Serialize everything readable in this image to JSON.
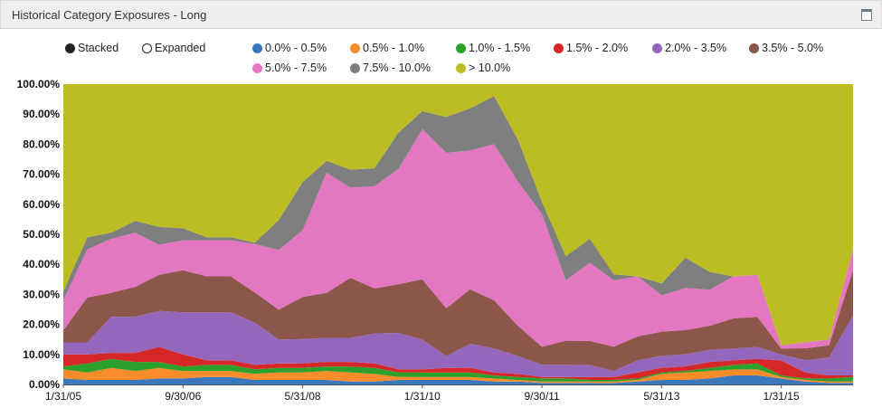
{
  "panel": {
    "title": "Historical Category Exposures - Long",
    "maximize_icon": "window-maximize-icon"
  },
  "mode_toggle": [
    {
      "label": "Stacked",
      "selected": true
    },
    {
      "label": "Expanded",
      "selected": false
    }
  ],
  "chart_data": {
    "type": "area",
    "stacking": "percent",
    "title": "",
    "xlabel": "",
    "ylabel": "",
    "ylim": [
      0,
      100
    ],
    "x_ticks": [
      "1/31/05",
      "9/30/06",
      "5/31/08",
      "1/31/10",
      "9/30/11",
      "5/31/13",
      "1/31/15"
    ],
    "y_ticks": [
      "0.00%",
      "10.00%",
      "20.00%",
      "30.00%",
      "40.00%",
      "50.00%",
      "60.00%",
      "70.00%",
      "80.00%",
      "90.00%",
      "100.00%"
    ],
    "x": [
      "1/31/05",
      "5/31/05",
      "9/30/05",
      "1/31/06",
      "5/31/06",
      "9/30/06",
      "1/31/07",
      "5/31/07",
      "9/30/07",
      "1/31/08",
      "5/31/08",
      "9/30/08",
      "1/31/09",
      "5/31/09",
      "9/30/09",
      "1/31/10",
      "5/31/10",
      "9/30/10",
      "1/31/11",
      "5/31/11",
      "9/30/11",
      "1/31/12",
      "5/31/12",
      "9/30/12",
      "1/31/13",
      "5/31/13",
      "9/30/13",
      "1/31/14",
      "5/31/14",
      "9/30/14",
      "1/31/15",
      "5/31/15",
      "9/30/15",
      "1/31/16"
    ],
    "series": [
      {
        "name": "0.0% - 0.5%",
        "color": "#3a78bd",
        "values": [
          2,
          1.5,
          1.5,
          1.5,
          2,
          2,
          2.5,
          2.5,
          1.5,
          1.5,
          1.5,
          1.5,
          1,
          1,
          1.5,
          1.5,
          1.5,
          1.5,
          1,
          1,
          0.5,
          0.5,
          0.5,
          0.5,
          1,
          1.5,
          1.5,
          2,
          3,
          3,
          2,
          1,
          0.5,
          0.5
        ]
      },
      {
        "name": "0.5% - 1.0%",
        "color": "#ff8c2a",
        "values": [
          3,
          2.5,
          4,
          3,
          3.5,
          2.5,
          2,
          2,
          2,
          2.5,
          2.5,
          3,
          3,
          2.5,
          1,
          1,
          1,
          1,
          1,
          0.5,
          0.5,
          0.5,
          0.5,
          0.5,
          0.5,
          2,
          2.5,
          2.5,
          2,
          2,
          0.5,
          0.5,
          0.5,
          0.5
        ]
      },
      {
        "name": "1.0% - 1.5%",
        "color": "#2ca02c",
        "values": [
          1,
          3,
          3,
          3,
          2,
          1.5,
          2,
          2,
          1.5,
          1.5,
          1.5,
          1.5,
          2,
          2,
          1.5,
          1.5,
          1.5,
          1.5,
          1,
          1,
          1,
          1,
          0.5,
          0.5,
          0.5,
          0.5,
          0.5,
          1,
          1.5,
          2,
          0.5,
          0.5,
          1,
          1.5
        ]
      },
      {
        "name": "1.5% - 2.0%",
        "color": "#d62728",
        "values": [
          4,
          3,
          2,
          3,
          5,
          4,
          1.5,
          1.5,
          1.5,
          1.5,
          1.5,
          1.5,
          1.5,
          1.5,
          1,
          1,
          1.5,
          1.5,
          1,
          1,
          0.5,
          0.5,
          1,
          1,
          2,
          1.5,
          1.5,
          2,
          1.5,
          1.5,
          5,
          2,
          1,
          0.5
        ]
      },
      {
        "name": "2.0% - 3.5%",
        "color": "#9467bd",
        "values": [
          4,
          4,
          12,
          12,
          12,
          14,
          16,
          16,
          14,
          8,
          8,
          8,
          8,
          10,
          12,
          10,
          4,
          8,
          8,
          6,
          4,
          4,
          4,
          2,
          4,
          4,
          4,
          4,
          4,
          4,
          2,
          4,
          6,
          20
        ]
      },
      {
        "name": "3.5% - 5.0%",
        "color": "#8c564b",
        "values": [
          4,
          15,
          8,
          10,
          12,
          14,
          12,
          12,
          10,
          10,
          14,
          15,
          20,
          15,
          16,
          20,
          16,
          18,
          16,
          10,
          6,
          8,
          8,
          8,
          8,
          8,
          8,
          8,
          10,
          10,
          2,
          4,
          4,
          15
        ]
      },
      {
        "name": "5.0% - 7.5%",
        "color": "#e377c2",
        "values": [
          10,
          16,
          18,
          18,
          10,
          10,
          12,
          12,
          16,
          20,
          22,
          40,
          30,
          34,
          38,
          50,
          52,
          46,
          52,
          48,
          44,
          20,
          26,
          22,
          20,
          12,
          14,
          12,
          14,
          14,
          1,
          2,
          2,
          7
        ]
      },
      {
        "name": "7.5% - 10.0%",
        "color": "#7f7f7f",
        "values": [
          3,
          4,
          2,
          4,
          6,
          4,
          1,
          1,
          0.5,
          10,
          16,
          4,
          6,
          6,
          12,
          6,
          12,
          14,
          16,
          14,
          4,
          8,
          8,
          2,
          0,
          4,
          10,
          6,
          0,
          0,
          0,
          0,
          0,
          0
        ]
      },
      {
        "name": "> 10.0%",
        "color": "#bcbd22",
        "values": [
          69,
          51,
          49.5,
          45.5,
          47.5,
          48,
          51,
          51,
          52.5,
          45.5,
          32.5,
          25.5,
          28.5,
          28,
          16,
          9,
          11,
          8,
          4,
          18.5,
          39,
          57,
          51.5,
          63,
          64,
          66,
          57.5,
          62.5,
          64,
          63.5,
          87,
          85.5,
          85,
          55
        ]
      }
    ]
  }
}
